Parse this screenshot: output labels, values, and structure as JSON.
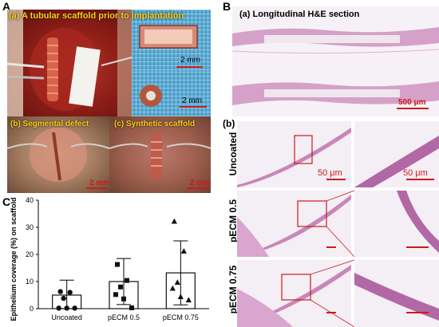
{
  "panelA": {
    "letter": "A",
    "caption_a": "(a) A tubular scaffold prior to implantation",
    "caption_b": "(b) Segmental defect",
    "caption_c": "(c) Synthetic scaffold",
    "scale_top": "2 mm",
    "scale_ring": "2 mm",
    "scale_b": "2 mm",
    "scale_c": "2 mm"
  },
  "panelB": {
    "letter": "B",
    "caption_a": "(a) Longitudinal H&E section",
    "scale_a": "500 μm",
    "caption_b": "(b)",
    "rows": [
      "Uncoated",
      "pECM 0.5",
      "pECM 0.75"
    ],
    "scale_low": "50 μm",
    "scale_high": "50 μm"
  },
  "panelC": {
    "letter": "C"
  },
  "chart_data": {
    "type": "bar",
    "categories": [
      "Uncoated",
      "pECM 0.5",
      "pECM 0.75"
    ],
    "values": [
      5,
      10,
      13.2
    ],
    "errors": [
      5.5,
      8.5,
      11.8
    ],
    "points": [
      [
        6.3,
        6.0,
        3.8,
        0.2,
        0.2,
        0.2
      ],
      [
        16.3,
        10.4,
        8.0,
        5.2,
        3.6,
        0.3
      ],
      [
        32.2,
        21.2,
        9.7,
        7.5,
        4.4,
        3.2
      ]
    ],
    "markers": [
      "circle",
      "square",
      "triangle"
    ],
    "ylabel": "Epithelium coverage (%) on scaffold",
    "ylim": [
      0,
      40
    ],
    "yticks": [
      "0",
      "10",
      "20",
      "30",
      "40"
    ],
    "colors": {
      "bar_fill": "#ffffff",
      "bar_stroke": "#111111",
      "marker": "#111111"
    }
  },
  "colors": {
    "tissue_pink": "#c986b8",
    "scale_red": "#cc1a1a",
    "caption_yellow": "#ffd21a"
  }
}
